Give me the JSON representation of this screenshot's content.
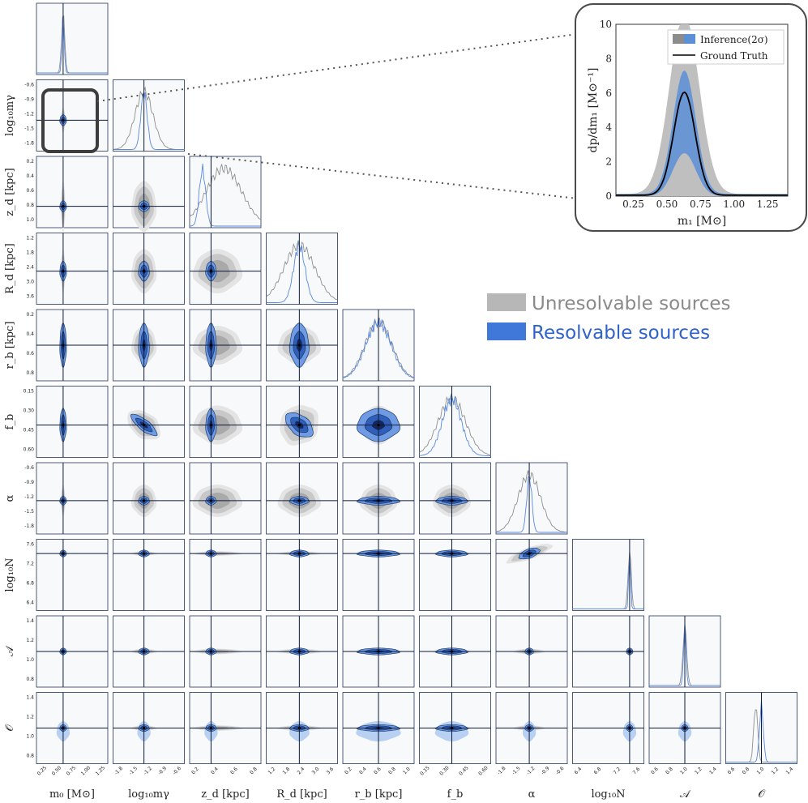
{
  "chart_data": {
    "type": "corner",
    "title": "",
    "colors": {
      "unresolvable": "#b4b4b4",
      "resolvable": "#3f78d8",
      "truth": "#0c1a3a",
      "panel_bg": "#f8f9fa",
      "frame": "#3a4a6a"
    },
    "legend": [
      {
        "name": "Unresolvable sources",
        "color": "#8a8a8a"
      },
      {
        "name": "Resolvable sources",
        "color": "#2f63c9"
      }
    ],
    "parameters": [
      {
        "label": "m₀ [M⊙]",
        "ylabel": "",
        "truth": 0.63,
        "range": [
          0.2,
          1.35
        ],
        "xticks": [
          "0.25",
          "0.50",
          "0.75",
          "1.00",
          "1.25"
        ],
        "yticks": []
      },
      {
        "label": "log₁₀mγ",
        "ylabel": "log₁₀mγ",
        "truth": -1.35,
        "range": [
          -2.0,
          -0.5
        ],
        "xticks": [
          "-1.8",
          "-1.5",
          "-1.2",
          "-0.9",
          "-0.6"
        ],
        "yticks": [
          "-0.6",
          "-0.9",
          "-1.2",
          "-1.5",
          "-1.8"
        ]
      },
      {
        "label": "z_d [kpc]",
        "ylabel": "z_d [kpc]",
        "truth": 0.3,
        "range": [
          0.0,
          1.0
        ],
        "xticks": [
          "0.2",
          "0.4",
          "0.6",
          "0.8"
        ],
        "yticks": [
          "0.2",
          "0.4",
          "0.6",
          "0.8",
          "1.0"
        ]
      },
      {
        "label": "R_d [kpc]",
        "ylabel": "R_d [kpc]",
        "truth": 2.5,
        "range": [
          1.2,
          4.0
        ],
        "xticks": [
          "1.2",
          "1.8",
          "2.4",
          "3.0",
          "3.6"
        ],
        "yticks": [
          "1.2",
          "1.8",
          "2.4",
          "3.0",
          "3.6"
        ]
      },
      {
        "label": "r_b [kpc]",
        "ylabel": "r_b [kpc]",
        "truth": 0.5,
        "range": [
          0.0,
          1.0
        ],
        "xticks": [
          "0.2",
          "0.4",
          "0.6",
          "0.8",
          "1.0"
        ],
        "yticks": [
          "0.2",
          "0.4",
          "0.6",
          "0.8"
        ]
      },
      {
        "label": "f_b",
        "ylabel": "f_b",
        "truth": 0.3,
        "range": [
          0.05,
          0.6
        ],
        "xticks": [
          "0.15",
          "0.30",
          "0.45",
          "0.60"
        ],
        "yticks": [
          "0.15",
          "0.30",
          "0.45",
          "0.60"
        ]
      },
      {
        "label": "α",
        "ylabel": "α",
        "truth": -1.3,
        "range": [
          -2.0,
          -0.5
        ],
        "xticks": [
          "-1.8",
          "-1.5",
          "-1.2",
          "-0.9",
          "-0.6"
        ],
        "yticks": [
          "-0.6",
          "-0.9",
          "-1.2",
          "-1.5",
          "-1.8"
        ]
      },
      {
        "label": "log₁₀N",
        "ylabel": "log₁₀N",
        "truth": 7.5,
        "range": [
          6.3,
          7.8
        ],
        "xticks": [
          "6.4",
          "6.8",
          "7.2",
          "7.6"
        ],
        "yticks": [
          "7.6",
          "7.2",
          "6.8",
          "6.4"
        ]
      },
      {
        "label": "𝒜",
        "ylabel": "𝒜",
        "truth": 1.0,
        "range": [
          0.6,
          1.4
        ],
        "xticks": [
          "0.6",
          "0.8",
          "1.0",
          "1.2",
          "1.4"
        ],
        "yticks": [
          "1.4",
          "1.2",
          "1.0",
          "0.8"
        ]
      },
      {
        "label": "𝒪",
        "ylabel": "𝒪",
        "truth": 1.0,
        "range": [
          0.6,
          1.4
        ],
        "xticks": [
          "0.6",
          "0.8",
          "1.0",
          "1.2",
          "1.4"
        ],
        "yticks": [
          "1.4",
          "1.2",
          "1.0",
          "0.8"
        ]
      }
    ],
    "inset": {
      "xlabel": "m₁ [M⊙]",
      "ylabel": "dp/dm₁ [M⊙⁻¹]",
      "xlim": [
        0.12,
        1.4
      ],
      "ylim": [
        0,
        10
      ],
      "xticks": [
        "0.25",
        "0.50",
        "0.75",
        "1.00",
        "1.25"
      ],
      "yticks": [
        "0",
        "2",
        "4",
        "6",
        "8",
        "10"
      ],
      "legend": [
        "Inference(2σ)",
        "Ground Truth"
      ],
      "peak_x": 0.63,
      "peak_y": 6.0
    }
  }
}
